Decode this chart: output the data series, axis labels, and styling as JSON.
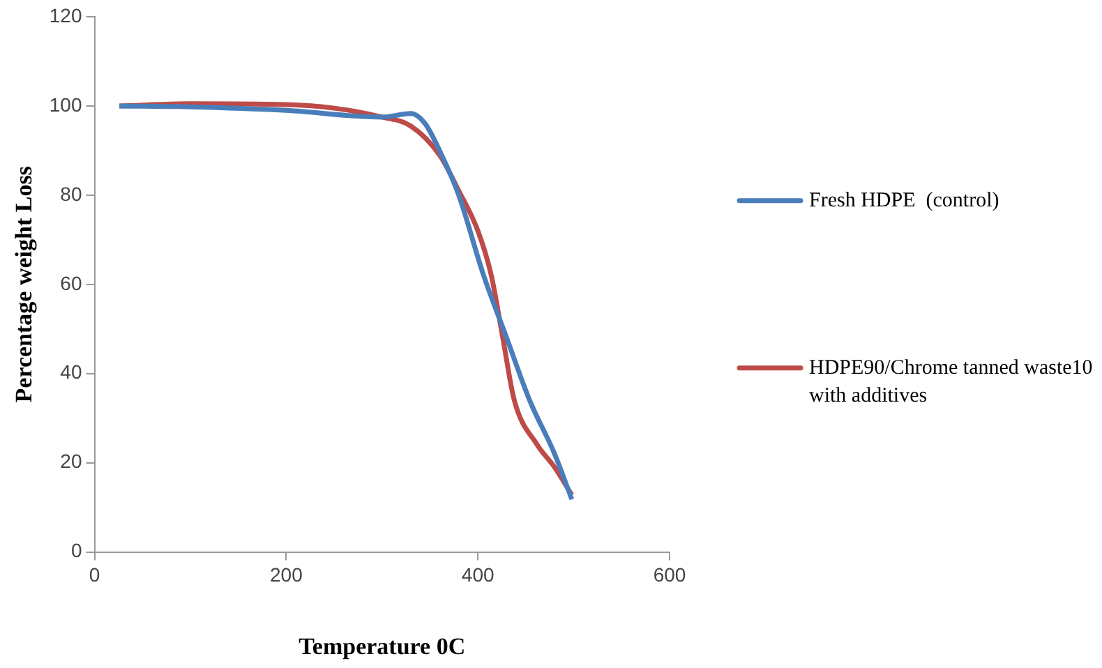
{
  "chart_data": {
    "type": "line",
    "xlabel": "Temperature 0C",
    "ylabel": "Percentage weight Loss",
    "xlim": [
      0,
      600
    ],
    "xticks": [
      0,
      200,
      400,
      600
    ],
    "ylim": [
      0,
      120
    ],
    "yticks": [
      0,
      20,
      40,
      60,
      80,
      100,
      120
    ],
    "grid": false,
    "legend": "right",
    "marker": "none",
    "series": [
      {
        "name": "Fresh HDPE  (control)",
        "color": "#4a7ebb",
        "x": [
          26,
          100,
          200,
          300,
          330,
          345,
          360,
          380,
          406,
          430,
          454,
          480,
          498
        ],
        "values": [
          100,
          99.8,
          99,
          97.5,
          98.3,
          96,
          90,
          80,
          62,
          48,
          34,
          22,
          11.8
        ]
      },
      {
        "name": "HDPE90/Chrome tanned waste10 with additives",
        "color": "#be4b48",
        "x": [
          26,
          100,
          200,
          250,
          300,
          330,
          360,
          380,
          400,
          414,
          426,
          438,
          462,
          480,
          498
        ],
        "values": [
          100,
          100.5,
          100.3,
          99.5,
          97.5,
          95.5,
          89,
          81,
          72,
          62,
          48,
          34,
          24,
          19,
          12.8
        ]
      }
    ]
  }
}
